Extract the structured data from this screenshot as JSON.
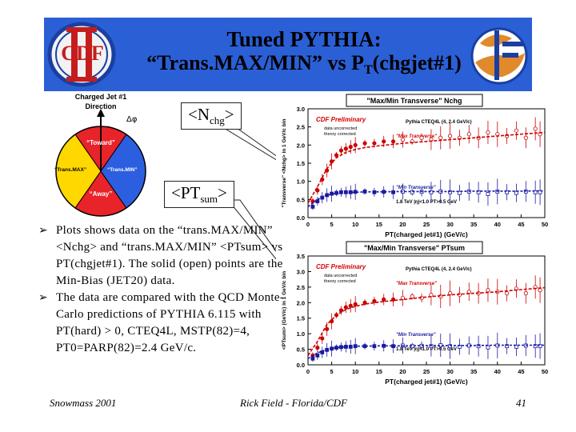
{
  "title": {
    "line1": "Tuned PYTHIA:",
    "line2_prefix": "“Trans.MAX/MIN” vs P",
    "line2_sub": "T",
    "line2_suffix": "(chgjet#1)"
  },
  "logos": {
    "left_text": "CDF",
    "left_icon": "cdf-logo-icon",
    "right_icon": "dph-logo-icon"
  },
  "diagram": {
    "header_line1": "Charged Jet #1",
    "header_line2": "Direction",
    "delta_phi": "Δφ",
    "toward": "“Toward”",
    "away": "“Away”",
    "trans_max": "“Trans.MAX”",
    "trans_min": "“Trans.MIN”",
    "colors": {
      "toward": "#e8232a",
      "away": "#e8232a",
      "trans_max": "#ffd800",
      "trans_min": "#2c5fe0",
      "sector": "#ffffff"
    }
  },
  "callouts": {
    "nchg_prefix": "<N",
    "nchg_sub": "chg",
    "nchg_suffix": ">",
    "ptsum_prefix": "<PT",
    "ptsum_sub": "sum",
    "ptsum_suffix": ">"
  },
  "bullets": [
    {
      "icon": "arrow-bullet-icon",
      "text": "Plots shows data on the “trans.MAX/MIN” <Nchg> and “trans.MAX/MIN” <PTsum> vs PT(chgjet#1). The solid (open) points are the Min-Bias (JET20) data."
    },
    {
      "icon": "arrow-bullet-icon",
      "text": "The data are compared with the QCD Monte-Carlo predictions of PYTHIA 6.115 with PT(hard) > 0, CTEQ4L, MSTP(82)=4, PT0=PARP(82)=2.4 GeV/c."
    }
  ],
  "footer": {
    "left": "Snowmass 2001",
    "center": "Rick Field - Florida/CDF",
    "right": "41"
  },
  "plot_labels": {
    "top": {
      "header": "\"Max/Min Transverse\" Nchg",
      "prelim": "CDF Preliminary",
      "corr1": "data uncorrected",
      "corr2": "theory corrected",
      "pythia": "Pythia CTEQ4L (4, 2.4 GeV/c)",
      "max_label": "\"Max Transverse\"",
      "min_label": "\"Min Transverse\"",
      "energy": "1.8 TeV |η|<1.0 PT>0.5 GeV"
    },
    "bottom": {
      "header": "\"Max/Min Transverse\" PTsum",
      "prelim": "CDF Preliminary",
      "corr1": "data uncorrected",
      "corr2": "theory corrected",
      "pythia": "Pythia CTEQ4L (4, 2.4 GeV/c)",
      "max_label": "\"Max Transverse\"",
      "min_label": "\"Min Transverse\"",
      "energy": "1.8 TeV |η|<1.0 PT>0.5 GeV"
    }
  },
  "chart_data": [
    {
      "type": "scatter",
      "title": "\"Max/Min Transverse\" Nchg",
      "xlabel": "PT(charged jet#1) (GeV/c)",
      "ylabel": "\"Transverse\" <Nchg> in 1 GeV/c bin",
      "xlim": [
        0,
        50
      ],
      "ylim": [
        0,
        3.0
      ],
      "xticks": [
        "0",
        "5",
        "10",
        "15",
        "20",
        "25",
        "30",
        "35",
        "40",
        "45",
        "50"
      ],
      "yticks": [
        "0.0",
        "0.5",
        "1.0",
        "1.5",
        "2.0",
        "2.5",
        "3.0"
      ],
      "series": [
        {
          "name": "\"Max Transverse\"",
          "style": "data",
          "color": "#cc0000",
          "x": [
            1,
            2,
            3,
            4,
            5,
            6,
            7,
            8,
            9,
            10,
            12,
            14,
            16,
            18,
            20,
            22,
            24,
            26,
            28,
            30,
            32,
            34,
            36,
            38,
            40,
            42,
            44,
            46,
            48,
            49
          ],
          "y": [
            0.45,
            0.75,
            1.05,
            1.3,
            1.55,
            1.72,
            1.85,
            1.9,
            1.95,
            2.0,
            2.05,
            2.05,
            2.1,
            2.1,
            2.15,
            2.1,
            2.2,
            2.15,
            2.2,
            2.25,
            2.2,
            2.3,
            2.2,
            2.35,
            2.3,
            2.25,
            2.4,
            2.2,
            2.45,
            2.3
          ]
        },
        {
          "name": "\"Min Transverse\"",
          "style": "data",
          "color": "#1a1aa0",
          "x": [
            1,
            2,
            3,
            4,
            5,
            6,
            7,
            8,
            9,
            10,
            12,
            14,
            16,
            18,
            20,
            22,
            24,
            26,
            28,
            30,
            32,
            34,
            36,
            38,
            40,
            42,
            44,
            46,
            48,
            49
          ],
          "y": [
            0.3,
            0.45,
            0.55,
            0.62,
            0.66,
            0.68,
            0.7,
            0.7,
            0.7,
            0.71,
            0.72,
            0.7,
            0.71,
            0.7,
            0.72,
            0.7,
            0.71,
            0.7,
            0.72,
            0.7,
            0.68,
            0.72,
            0.7,
            0.65,
            0.72,
            0.7,
            0.68,
            0.72,
            0.7,
            0.7
          ]
        },
        {
          "name": "",
          "style": "theory",
          "color": "#cc0000",
          "x": [
            0,
            2,
            4,
            6,
            8,
            10,
            12,
            15,
            20,
            25,
            30,
            35,
            40,
            45,
            50
          ],
          "y": [
            0.4,
            0.85,
            1.35,
            1.65,
            1.8,
            1.88,
            1.93,
            1.98,
            2.05,
            2.1,
            2.15,
            2.2,
            2.25,
            2.3,
            2.35
          ]
        },
        {
          "name": "",
          "style": "theory",
          "color": "#1a1aa0",
          "x": [
            0,
            2,
            4,
            6,
            8,
            10,
            12,
            15,
            20,
            25,
            30,
            35,
            40,
            45,
            50
          ],
          "y": [
            0.3,
            0.5,
            0.62,
            0.67,
            0.69,
            0.7,
            0.71,
            0.71,
            0.72,
            0.72,
            0.72,
            0.73,
            0.73,
            0.73,
            0.74
          ]
        }
      ]
    },
    {
      "type": "scatter",
      "title": "\"Max/Min Transverse\" PTsum",
      "xlabel": "PT(charged jet#1) (GeV/c)",
      "ylabel": "<PTsum> (GeV/c) in 1 GeV/c bin",
      "xlim": [
        0,
        50
      ],
      "ylim": [
        0,
        3.5
      ],
      "xticks": [
        "0",
        "5",
        "10",
        "15",
        "20",
        "25",
        "30",
        "35",
        "40",
        "45",
        "50"
      ],
      "yticks": [
        "0.0",
        "0.5",
        "1.0",
        "1.5",
        "2.0",
        "2.5",
        "3.0",
        "3.5"
      ],
      "series": [
        {
          "name": "\"Max Transverse\"",
          "style": "data",
          "color": "#cc0000",
          "x": [
            1,
            2,
            3,
            4,
            5,
            6,
            7,
            8,
            9,
            10,
            12,
            14,
            16,
            18,
            20,
            22,
            24,
            26,
            28,
            30,
            32,
            34,
            36,
            38,
            40,
            42,
            44,
            46,
            48,
            49
          ],
          "y": [
            0.3,
            0.55,
            0.85,
            1.15,
            1.4,
            1.6,
            1.75,
            1.85,
            1.9,
            1.95,
            2.0,
            2.05,
            2.1,
            2.1,
            2.15,
            2.2,
            2.15,
            2.25,
            2.2,
            2.3,
            2.25,
            2.35,
            2.3,
            2.4,
            2.35,
            2.3,
            2.45,
            2.3,
            2.5,
            2.4
          ]
        },
        {
          "name": "\"Min Transverse\"",
          "style": "data",
          "color": "#1a1aa0",
          "x": [
            1,
            2,
            3,
            4,
            5,
            6,
            7,
            8,
            9,
            10,
            12,
            14,
            16,
            18,
            20,
            22,
            24,
            26,
            28,
            30,
            32,
            34,
            36,
            38,
            40,
            42,
            44,
            46,
            48,
            49
          ],
          "y": [
            0.2,
            0.3,
            0.4,
            0.48,
            0.52,
            0.55,
            0.57,
            0.58,
            0.58,
            0.6,
            0.6,
            0.6,
            0.61,
            0.6,
            0.62,
            0.6,
            0.61,
            0.6,
            0.63,
            0.6,
            0.58,
            0.62,
            0.6,
            0.56,
            0.62,
            0.6,
            0.58,
            0.62,
            0.6,
            0.6
          ]
        },
        {
          "name": "",
          "style": "theory",
          "color": "#cc0000",
          "x": [
            0,
            2,
            4,
            6,
            8,
            10,
            12,
            15,
            20,
            25,
            30,
            35,
            40,
            45,
            50
          ],
          "y": [
            0.3,
            0.75,
            1.3,
            1.6,
            1.78,
            1.88,
            1.95,
            2.02,
            2.1,
            2.18,
            2.25,
            2.3,
            2.35,
            2.42,
            2.48
          ]
        },
        {
          "name": "",
          "style": "theory",
          "color": "#1a1aa0",
          "x": [
            0,
            2,
            4,
            6,
            8,
            10,
            12,
            15,
            20,
            25,
            30,
            35,
            40,
            45,
            50
          ],
          "y": [
            0.2,
            0.38,
            0.5,
            0.55,
            0.58,
            0.6,
            0.6,
            0.61,
            0.61,
            0.62,
            0.62,
            0.62,
            0.63,
            0.63,
            0.63
          ]
        }
      ]
    }
  ]
}
